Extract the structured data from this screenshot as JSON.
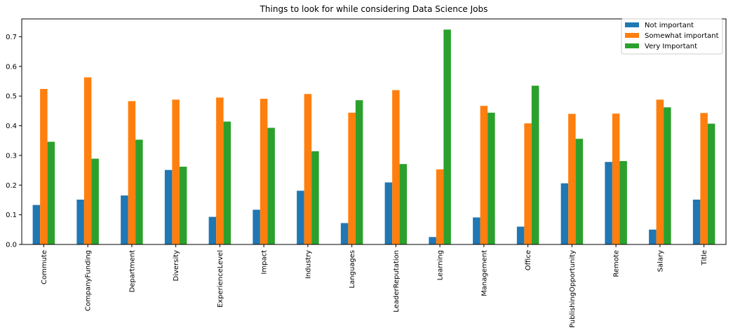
{
  "chart_data": {
    "type": "bar",
    "title": "Things to look for while considering Data Science Jobs",
    "xlabel": "",
    "ylabel": "",
    "ylim": [
      0,
      0.76
    ],
    "yticks": [
      0.0,
      0.1,
      0.2,
      0.3,
      0.4,
      0.5,
      0.6,
      0.7
    ],
    "ytick_labels": [
      "0.0",
      "0.1",
      "0.2",
      "0.3",
      "0.4",
      "0.5",
      "0.6",
      "0.7"
    ],
    "grid": false,
    "legend_position": "top-right",
    "categories": [
      "Commute",
      "CompanyFunding",
      "Department",
      "Diversity",
      "ExperienceLevel",
      "Impact",
      "Industry",
      "Languages",
      "LeaderReputation",
      "Learning",
      "Management",
      "Office",
      "PublishingOpportunity",
      "Remote",
      "Salary",
      "Title"
    ],
    "series": [
      {
        "name": "Not important",
        "color": "#1f77b4",
        "values": [
          0.133,
          0.151,
          0.165,
          0.251,
          0.093,
          0.117,
          0.181,
          0.072,
          0.209,
          0.025,
          0.091,
          0.06,
          0.206,
          0.278,
          0.05,
          0.151
        ]
      },
      {
        "name": "Somewhat important",
        "color": "#ff7f0e",
        "values": [
          0.524,
          0.563,
          0.483,
          0.488,
          0.495,
          0.491,
          0.507,
          0.444,
          0.52,
          0.253,
          0.467,
          0.408,
          0.44,
          0.441,
          0.488,
          0.443
        ]
      },
      {
        "name": "Very Important",
        "color": "#2ca02c",
        "values": [
          0.346,
          0.289,
          0.353,
          0.262,
          0.414,
          0.393,
          0.314,
          0.486,
          0.271,
          0.724,
          0.444,
          0.535,
          0.356,
          0.281,
          0.462,
          0.407
        ]
      }
    ]
  }
}
